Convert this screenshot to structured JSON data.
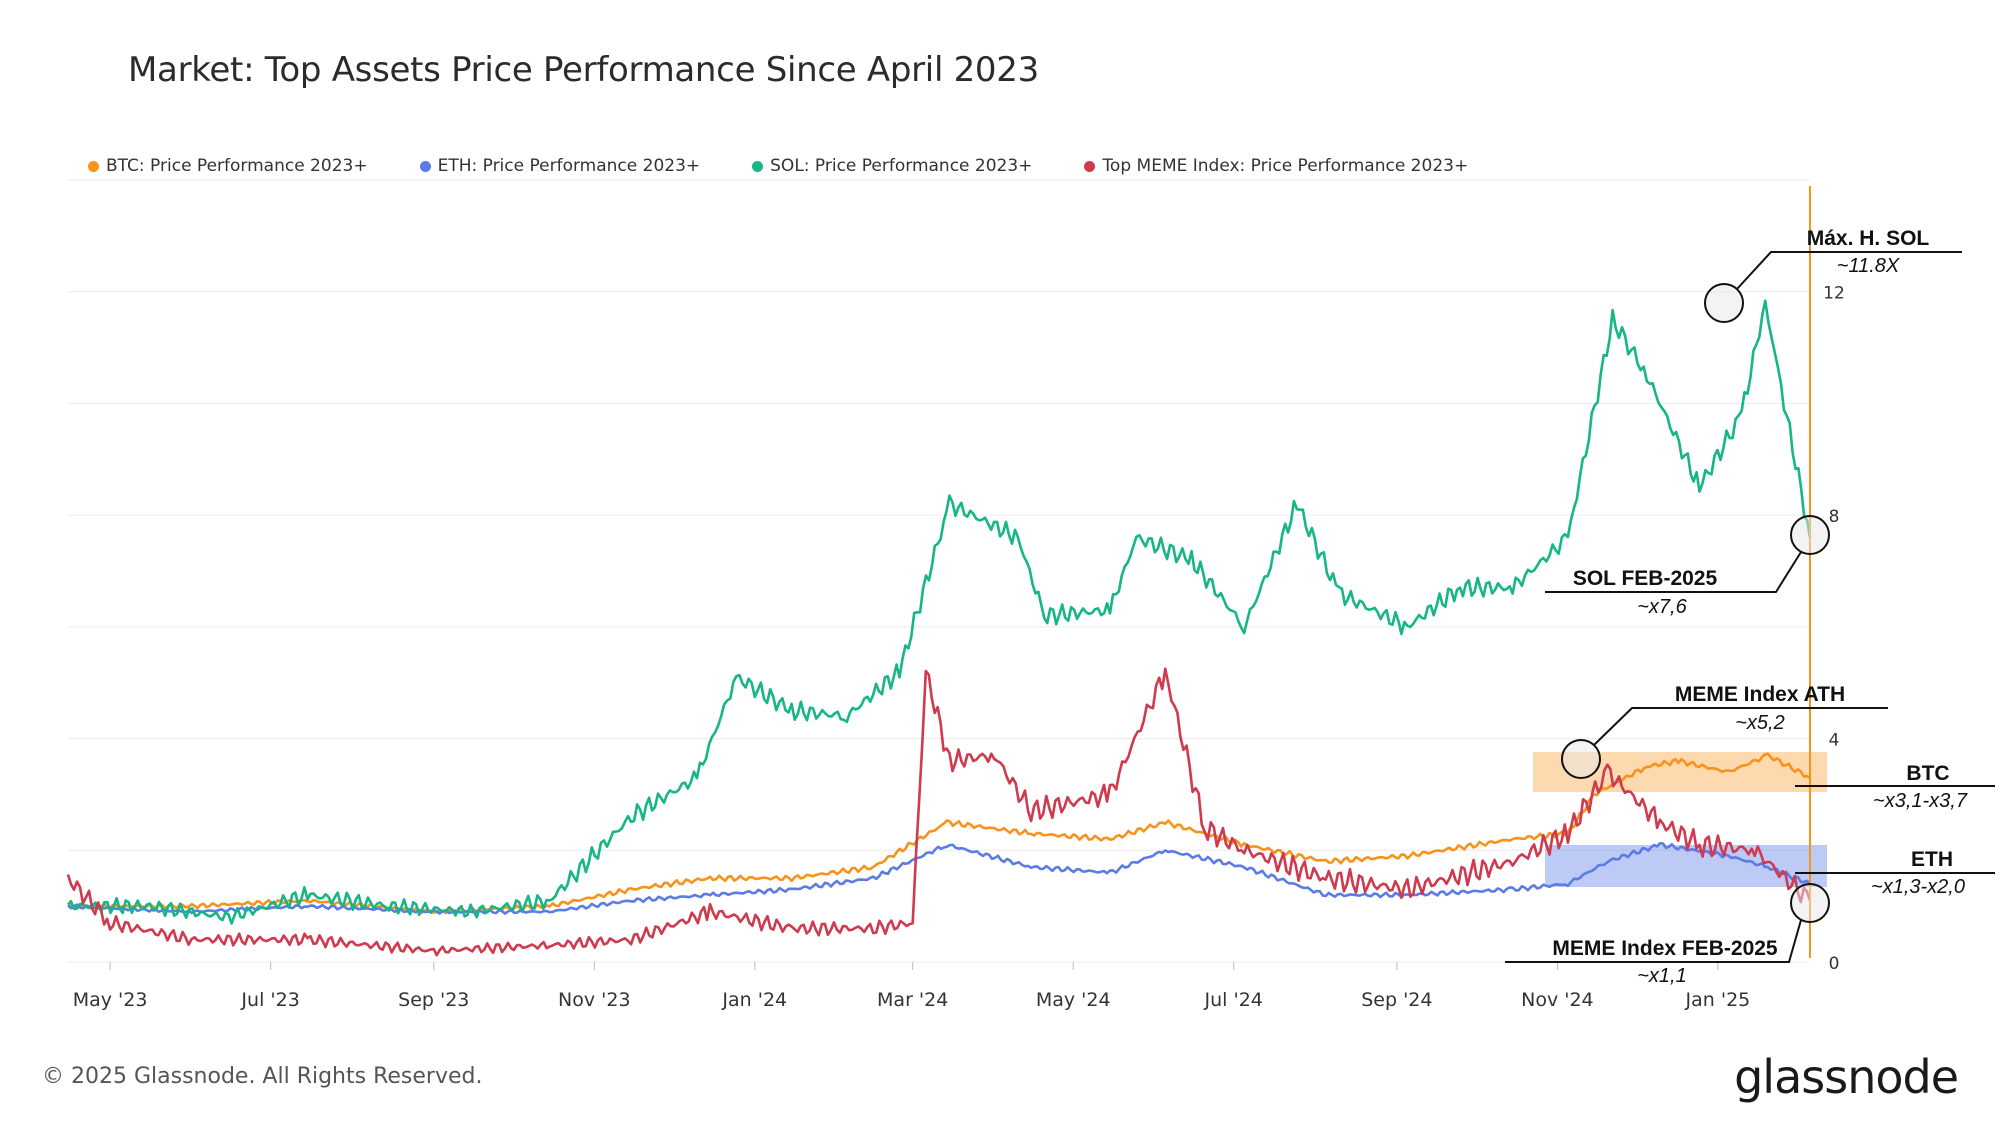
{
  "chart_data": {
    "type": "line",
    "title": "Market: Top Assets Price Performance Since April 2023",
    "x_tick_labels": [
      "May '23",
      "Jul '23",
      "Sep '23",
      "Nov '23",
      "Jan '24",
      "Mar '24",
      "May '24",
      "Jul '24",
      "Sep '24",
      "Nov '24",
      "Jan '25"
    ],
    "y_tick_labels": [
      "0",
      "4",
      "8",
      "12"
    ],
    "ylim": [
      0,
      14
    ],
    "xlim": [
      "2023-04-15",
      "2025-02-05"
    ],
    "grid": "horizontal",
    "legend_placement": "top-left",
    "series": [
      {
        "name": "BTC: Price Performance 2023+",
        "color": "#f7931a",
        "points": [
          [
            "2023-04-15",
            1.0
          ],
          [
            "2023-06-01",
            1.0
          ],
          [
            "2023-07-15",
            1.1
          ],
          [
            "2023-09-01",
            0.9
          ],
          [
            "2023-10-15",
            1.0
          ],
          [
            "2023-11-15",
            1.3
          ],
          [
            "2023-12-15",
            1.5
          ],
          [
            "2024-01-15",
            1.5
          ],
          [
            "2024-02-15",
            1.7
          ],
          [
            "2024-03-14",
            2.5
          ],
          [
            "2024-04-15",
            2.3
          ],
          [
            "2024-05-15",
            2.2
          ],
          [
            "2024-06-05",
            2.5
          ],
          [
            "2024-07-05",
            2.1
          ],
          [
            "2024-08-05",
            1.8
          ],
          [
            "2024-09-05",
            1.9
          ],
          [
            "2024-10-15",
            2.2
          ],
          [
            "2024-11-05",
            2.3
          ],
          [
            "2024-11-15",
            3.0
          ],
          [
            "2024-12-05",
            3.5
          ],
          [
            "2024-12-17",
            3.6
          ],
          [
            "2025-01-05",
            3.4
          ],
          [
            "2025-01-20",
            3.7
          ],
          [
            "2025-02-05",
            3.3
          ]
        ]
      },
      {
        "name": "ETH: Price Performance 2023+",
        "color": "#5b7be6",
        "points": [
          [
            "2023-04-15",
            1.0
          ],
          [
            "2023-06-01",
            0.9
          ],
          [
            "2023-07-15",
            1.0
          ],
          [
            "2023-09-01",
            0.9
          ],
          [
            "2023-10-15",
            0.9
          ],
          [
            "2023-11-15",
            1.1
          ],
          [
            "2023-12-15",
            1.2
          ],
          [
            "2024-01-15",
            1.3
          ],
          [
            "2024-02-15",
            1.5
          ],
          [
            "2024-03-14",
            2.1
          ],
          [
            "2024-04-15",
            1.7
          ],
          [
            "2024-05-15",
            1.6
          ],
          [
            "2024-06-05",
            2.0
          ],
          [
            "2024-07-05",
            1.7
          ],
          [
            "2024-08-05",
            1.2
          ],
          [
            "2024-09-05",
            1.2
          ],
          [
            "2024-10-15",
            1.3
          ],
          [
            "2024-11-05",
            1.4
          ],
          [
            "2024-11-20",
            1.8
          ],
          [
            "2024-12-10",
            2.1
          ],
          [
            "2025-01-05",
            1.9
          ],
          [
            "2025-01-20",
            1.7
          ],
          [
            "2025-02-05",
            1.4
          ]
        ]
      },
      {
        "name": "SOL: Price Performance 2023+",
        "color": "#16b686",
        "points": [
          [
            "2023-04-15",
            1.0
          ],
          [
            "2023-05-15",
            1.0
          ],
          [
            "2023-06-15",
            0.8
          ],
          [
            "2023-07-15",
            1.2
          ],
          [
            "2023-08-15",
            1.0
          ],
          [
            "2023-09-15",
            0.9
          ],
          [
            "2023-10-15",
            1.1
          ],
          [
            "2023-11-15",
            2.6
          ],
          [
            "2023-12-10",
            3.3
          ],
          [
            "2023-12-25",
            5.1
          ],
          [
            "2024-01-15",
            4.5
          ],
          [
            "2024-02-05",
            4.4
          ],
          [
            "2024-02-25",
            5.2
          ],
          [
            "2024-03-15",
            8.2
          ],
          [
            "2024-04-10",
            7.6
          ],
          [
            "2024-04-20",
            6.2
          ],
          [
            "2024-05-15",
            6.3
          ],
          [
            "2024-05-25",
            7.6
          ],
          [
            "2024-06-15",
            7.2
          ],
          [
            "2024-07-05",
            6.0
          ],
          [
            "2024-07-25",
            8.2
          ],
          [
            "2024-08-10",
            6.6
          ],
          [
            "2024-09-05",
            6.0
          ],
          [
            "2024-09-25",
            6.7
          ],
          [
            "2024-10-15",
            6.7
          ],
          [
            "2024-11-05",
            7.6
          ],
          [
            "2024-11-22",
            11.5
          ],
          [
            "2024-12-05",
            10.5
          ],
          [
            "2024-12-25",
            8.5
          ],
          [
            "2025-01-10",
            9.8
          ],
          [
            "2025-01-19",
            11.8
          ],
          [
            "2025-01-25",
            10.3
          ],
          [
            "2025-02-05",
            7.6
          ]
        ]
      },
      {
        "name": "Top MEME Index: Price Performance 2023+",
        "color": "#d03a4e",
        "points": [
          [
            "2023-04-15",
            1.5
          ],
          [
            "2023-05-01",
            0.7
          ],
          [
            "2023-06-01",
            0.4
          ],
          [
            "2023-07-15",
            0.4
          ],
          [
            "2023-09-01",
            0.2
          ],
          [
            "2023-10-15",
            0.3
          ],
          [
            "2023-11-15",
            0.4
          ],
          [
            "2023-12-15",
            0.9
          ],
          [
            "2024-01-15",
            0.6
          ],
          [
            "2024-02-15",
            0.6
          ],
          [
            "2024-03-01",
            0.7
          ],
          [
            "2024-03-06",
            5.2
          ],
          [
            "2024-03-15",
            3.6
          ],
          [
            "2024-04-01",
            3.7
          ],
          [
            "2024-04-15",
            2.7
          ],
          [
            "2024-05-15",
            3.0
          ],
          [
            "2024-06-05",
            5.2
          ],
          [
            "2024-06-20",
            2.4
          ],
          [
            "2024-07-05",
            2.0
          ],
          [
            "2024-08-05",
            1.5
          ],
          [
            "2024-09-05",
            1.3
          ],
          [
            "2024-10-15",
            1.8
          ],
          [
            "2024-11-05",
            2.3
          ],
          [
            "2024-11-20",
            3.4
          ],
          [
            "2024-12-10",
            2.5
          ],
          [
            "2024-12-25",
            2.1
          ],
          [
            "2025-01-15",
            2.0
          ],
          [
            "2025-02-05",
            1.1
          ]
        ]
      }
    ],
    "annotations": [
      {
        "title": "Máx. H. SOL",
        "value": "~11.8X"
      },
      {
        "title": "SOL FEB-2025",
        "value": "~x7,6"
      },
      {
        "title": "MEME Index ATH",
        "value": "~x5,2"
      },
      {
        "title": "BTC",
        "value": "~x3,1-x3,7"
      },
      {
        "title": "ETH",
        "value": "~x1,3-x2,0"
      },
      {
        "title": "MEME Index FEB-2025",
        "value": "~x1,1"
      }
    ]
  },
  "footer": {
    "copyright": "© 2025 Glassnode. All Rights Reserved.",
    "logo": "glassnode"
  }
}
